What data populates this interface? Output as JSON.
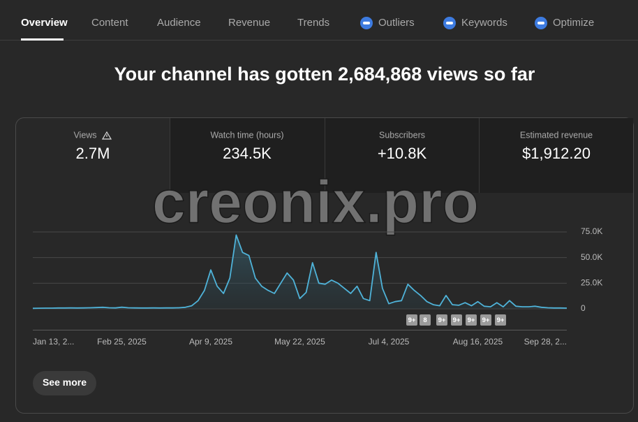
{
  "tabs": [
    "Overview",
    "Content",
    "Audience",
    "Revenue",
    "Trends",
    "Outliers",
    "Keywords",
    "Optimize"
  ],
  "headline": "Your channel has gotten 2,684,868 views so far",
  "metrics": [
    {
      "label": "Views",
      "value": "2.7M"
    },
    {
      "label": "Watch time (hours)",
      "value": "234.5K"
    },
    {
      "label": "Subscribers",
      "value": "+10.8K"
    },
    {
      "label": "Estimated revenue",
      "value": "$1,912.20"
    }
  ],
  "watermark": "creonix.pro",
  "chart_data": {
    "type": "line",
    "color": "#4fb3d9",
    "grid": true,
    "categories": [
      "Jan 13, 2...",
      null,
      null,
      null,
      null,
      null,
      null,
      null,
      null,
      null,
      null,
      null,
      null,
      null,
      "Feb 25, 2025",
      null,
      null,
      null,
      null,
      null,
      null,
      null,
      null,
      null,
      null,
      null,
      null,
      null,
      "Apr 9, 2025",
      null,
      null,
      null,
      null,
      null,
      null,
      null,
      null,
      null,
      null,
      null,
      null,
      null,
      "May 22, 2025",
      null,
      null,
      null,
      null,
      null,
      null,
      null,
      null,
      null,
      null,
      null,
      null,
      null,
      "Jul 4, 2025",
      null,
      null,
      null,
      null,
      null,
      null,
      null,
      null,
      null,
      null,
      null,
      null,
      null,
      "Aug 16, 2025",
      null,
      null,
      null,
      null,
      null,
      null,
      null,
      null,
      null,
      null,
      null,
      null,
      null,
      "Sep 28, 2..."
    ],
    "values": [
      500,
      600,
      700,
      700,
      800,
      800,
      900,
      800,
      900,
      1000,
      1200,
      1500,
      1000,
      900,
      1600,
      1000,
      900,
      800,
      800,
      900,
      800,
      900,
      900,
      1000,
      1500,
      3000,
      8000,
      18000,
      38000,
      22000,
      15000,
      30000,
      72000,
      55000,
      52000,
      30000,
      22000,
      18000,
      15000,
      25000,
      35000,
      28000,
      10000,
      16000,
      45000,
      25000,
      24000,
      28000,
      25000,
      20000,
      15000,
      22000,
      10000,
      8000,
      55000,
      20000,
      5000,
      7000,
      8000,
      24000,
      18000,
      13000,
      7000,
      4000,
      3000,
      13000,
      4000,
      3500,
      6000,
      3000,
      7000,
      2500,
      2000,
      6000,
      2000,
      8000,
      2500,
      2000,
      2000,
      2500,
      1500,
      1000,
      800,
      800,
      700
    ],
    "ylim": [
      0,
      75000
    ],
    "yticks": [
      {
        "value": 0,
        "label": "0"
      },
      {
        "value": 25000,
        "label": "25.0K"
      },
      {
        "value": 50000,
        "label": "50.0K"
      },
      {
        "value": 75000,
        "label": "75.0K"
      }
    ],
    "annotations": [
      "9+",
      "8",
      "9+",
      "9+",
      "9+",
      "9+",
      "9+"
    ]
  },
  "button": "See more"
}
